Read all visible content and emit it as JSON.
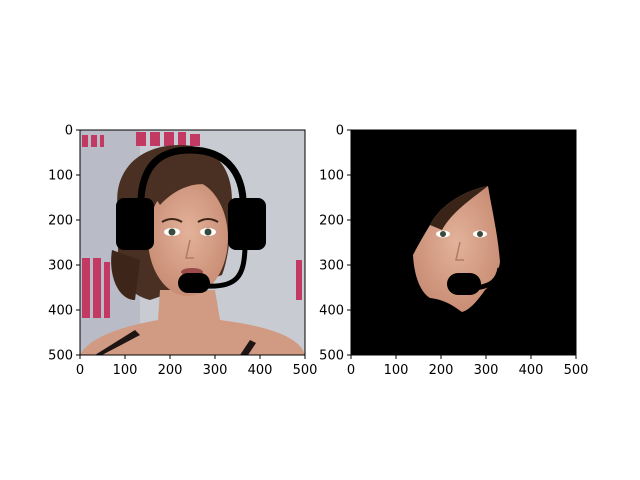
{
  "chart_data": [
    {
      "type": "image",
      "image_content": "photo of a woman with dark hair wearing a black headset (ear cups and microphone boom) over the face; pink text on white wall in background",
      "xlim": [
        0,
        500
      ],
      "ylim": [
        500,
        0
      ],
      "x_ticks": [
        "0",
        "100",
        "200",
        "300",
        "400",
        "500"
      ],
      "y_ticks": [
        "0",
        "100",
        "200",
        "300",
        "400",
        "500"
      ],
      "colors": {
        "wall": "#c9cbd3",
        "text": "#c23a63",
        "hair": "#4a3022",
        "skin": "#d9a48c",
        "headset": "#000000"
      }
    },
    {
      "type": "image",
      "image_content": "segmented face mask: only the face region visible on a black background, with black microphone boom overlay",
      "xlim": [
        0,
        500
      ],
      "ylim": [
        500,
        0
      ],
      "x_ticks": [
        "0",
        "100",
        "200",
        "300",
        "400",
        "500"
      ],
      "y_ticks": [
        "0",
        "100",
        "200",
        "300",
        "400",
        "500"
      ],
      "colors": {
        "background": "#000000",
        "skin": "#d9a48c",
        "hair": "#3a2418",
        "headset": "#000000"
      }
    }
  ]
}
